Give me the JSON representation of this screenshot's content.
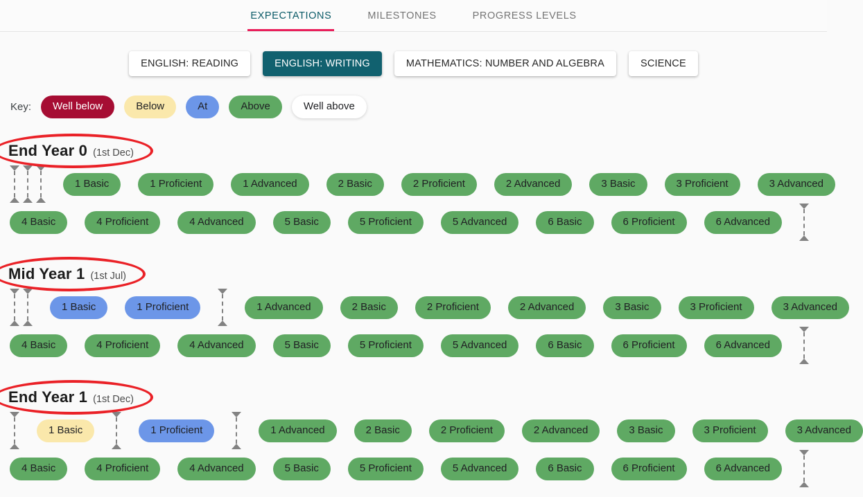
{
  "tab_bar": {
    "tabs": [
      {
        "label": "EXPECTATIONS",
        "active": true
      },
      {
        "label": "MILESTONES",
        "active": false
      },
      {
        "label": "PROGRESS LEVELS",
        "active": false
      }
    ]
  },
  "subject_bar": {
    "buttons": [
      {
        "label": "ENGLISH: READING",
        "active": false
      },
      {
        "label": "ENGLISH: WRITING",
        "active": true
      },
      {
        "label": "MATHEMATICS: NUMBER AND ALGEBRA",
        "active": false
      },
      {
        "label": "SCIENCE",
        "active": false
      }
    ]
  },
  "key": {
    "label": "Key:",
    "items": [
      {
        "label": "Well below",
        "level": "well_below"
      },
      {
        "label": "Below",
        "level": "below"
      },
      {
        "label": "At",
        "level": "at"
      },
      {
        "label": "Above",
        "level": "above"
      },
      {
        "label": "Well above",
        "level": "well_above"
      }
    ]
  },
  "levels": {
    "well_below": {
      "bg": "#a60d33",
      "text": "#ffffff"
    },
    "below": {
      "bg": "#fae8ab",
      "text": "#202124"
    },
    "at": {
      "bg": "#6c96e8",
      "text": "#202124"
    },
    "above": {
      "bg": "#5fa963",
      "text": "#202124"
    },
    "well_above": {
      "bg": "#ffffff",
      "text": "#202124"
    }
  },
  "colors": {
    "tab_active_text": "#0a5a67",
    "tab_inactive_text": "#757575",
    "tab_underline": "#e91e5a",
    "active_subject_bg": "#11616f",
    "ellipse": "#ea2127",
    "marker": "#828282",
    "page_bg": "#fafafa"
  },
  "sections": [
    {
      "title": "End Year 0",
      "date": "(1st Dec)",
      "rows": [
        [
          {
            "type": "marker"
          },
          {
            "type": "marker"
          },
          {
            "type": "marker"
          },
          {
            "type": "pill",
            "label": "1 Basic",
            "level": "above"
          },
          {
            "type": "pill",
            "label": "1 Proficient",
            "level": "above"
          },
          {
            "type": "pill",
            "label": "1 Advanced",
            "level": "above"
          },
          {
            "type": "pill",
            "label": "2 Basic",
            "level": "above"
          },
          {
            "type": "pill",
            "label": "2 Proficient",
            "level": "above"
          },
          {
            "type": "pill",
            "label": "2 Advanced",
            "level": "above"
          },
          {
            "type": "pill",
            "label": "3 Basic",
            "level": "above"
          },
          {
            "type": "pill",
            "label": "3 Proficient",
            "level": "above"
          },
          {
            "type": "pill",
            "label": "3 Advanced",
            "level": "above"
          }
        ],
        [
          {
            "type": "pill",
            "label": "4 Basic",
            "level": "above"
          },
          {
            "type": "pill",
            "label": "4 Proficient",
            "level": "above"
          },
          {
            "type": "pill",
            "label": "4 Advanced",
            "level": "above"
          },
          {
            "type": "pill",
            "label": "5 Basic",
            "level": "above"
          },
          {
            "type": "pill",
            "label": "5 Proficient",
            "level": "above"
          },
          {
            "type": "pill",
            "label": "5 Advanced",
            "level": "above"
          },
          {
            "type": "pill",
            "label": "6 Basic",
            "level": "above"
          },
          {
            "type": "pill",
            "label": "6 Proficient",
            "level": "above"
          },
          {
            "type": "pill",
            "label": "6 Advanced",
            "level": "above"
          },
          {
            "type": "marker"
          }
        ]
      ]
    },
    {
      "title": "Mid Year 1",
      "date": "(1st Jul)",
      "rows": [
        [
          {
            "type": "marker"
          },
          {
            "type": "marker"
          },
          {
            "type": "pill",
            "label": "1 Basic",
            "level": "at"
          },
          {
            "type": "pill",
            "label": "1 Proficient",
            "level": "at"
          },
          {
            "type": "marker"
          },
          {
            "type": "pill",
            "label": "1 Advanced",
            "level": "above"
          },
          {
            "type": "pill",
            "label": "2 Basic",
            "level": "above"
          },
          {
            "type": "pill",
            "label": "2 Proficient",
            "level": "above"
          },
          {
            "type": "pill",
            "label": "2 Advanced",
            "level": "above"
          },
          {
            "type": "pill",
            "label": "3 Basic",
            "level": "above"
          },
          {
            "type": "pill",
            "label": "3 Proficient",
            "level": "above"
          },
          {
            "type": "pill",
            "label": "3 Advanced",
            "level": "above"
          }
        ],
        [
          {
            "type": "pill",
            "label": "4 Basic",
            "level": "above"
          },
          {
            "type": "pill",
            "label": "4 Proficient",
            "level": "above"
          },
          {
            "type": "pill",
            "label": "4 Advanced",
            "level": "above"
          },
          {
            "type": "pill",
            "label": "5 Basic",
            "level": "above"
          },
          {
            "type": "pill",
            "label": "5 Proficient",
            "level": "above"
          },
          {
            "type": "pill",
            "label": "5 Advanced",
            "level": "above"
          },
          {
            "type": "pill",
            "label": "6 Basic",
            "level": "above"
          },
          {
            "type": "pill",
            "label": "6 Proficient",
            "level": "above"
          },
          {
            "type": "pill",
            "label": "6 Advanced",
            "level": "above"
          },
          {
            "type": "marker"
          }
        ]
      ]
    },
    {
      "title": "End Year 1",
      "date": "(1st Dec)",
      "rows": [
        [
          {
            "type": "marker"
          },
          {
            "type": "pill",
            "label": "1 Basic",
            "level": "below"
          },
          {
            "type": "marker"
          },
          {
            "type": "pill",
            "label": "1 Proficient",
            "level": "at"
          },
          {
            "type": "marker"
          },
          {
            "type": "pill",
            "label": "1 Advanced",
            "level": "above"
          },
          {
            "type": "pill",
            "label": "2 Basic",
            "level": "above"
          },
          {
            "type": "pill",
            "label": "2 Proficient",
            "level": "above"
          },
          {
            "type": "pill",
            "label": "2 Advanced",
            "level": "above"
          },
          {
            "type": "pill",
            "label": "3 Basic",
            "level": "above"
          },
          {
            "type": "pill",
            "label": "3 Proficient",
            "level": "above"
          },
          {
            "type": "pill",
            "label": "3 Advanced",
            "level": "above"
          }
        ],
        [
          {
            "type": "pill",
            "label": "4 Basic",
            "level": "above"
          },
          {
            "type": "pill",
            "label": "4 Proficient",
            "level": "above"
          },
          {
            "type": "pill",
            "label": "4 Advanced",
            "level": "above"
          },
          {
            "type": "pill",
            "label": "5 Basic",
            "level": "above"
          },
          {
            "type": "pill",
            "label": "5 Proficient",
            "level": "above"
          },
          {
            "type": "pill",
            "label": "5 Advanced",
            "level": "above"
          },
          {
            "type": "pill",
            "label": "6 Basic",
            "level": "above"
          },
          {
            "type": "pill",
            "label": "6 Proficient",
            "level": "above"
          },
          {
            "type": "pill",
            "label": "6 Advanced",
            "level": "above"
          },
          {
            "type": "marker"
          }
        ]
      ]
    }
  ]
}
